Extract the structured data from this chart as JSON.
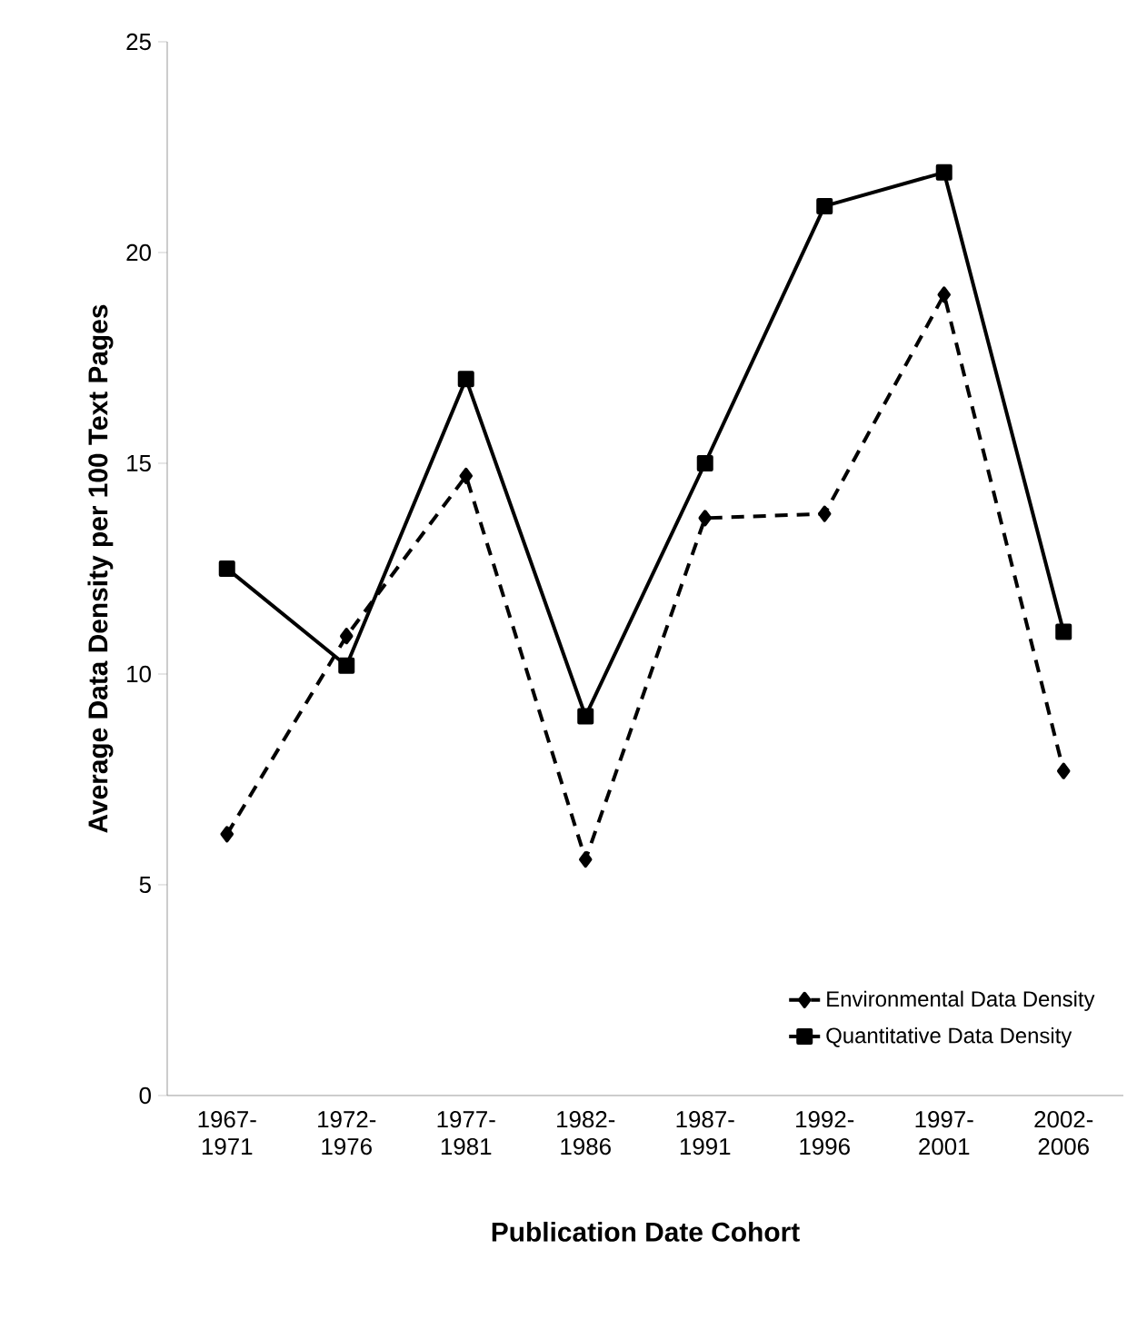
{
  "chart_data": {
    "type": "line",
    "xlabel": "Publication Date Cohort",
    "ylabel": "Average Data Density per 100 Text Pages",
    "categories": [
      "1967-1971",
      "1972-1976",
      "1977-1981",
      "1982-1986",
      "1987-1991",
      "1992-1996",
      "1997-2001",
      "2002-2006"
    ],
    "series": [
      {
        "name": "Environmental Data Density",
        "color": "#000000",
        "marker": "diamond",
        "line_style": "dashed",
        "values": [
          6.2,
          10.9,
          14.7,
          5.6,
          13.7,
          13.8,
          19.0,
          7.7
        ]
      },
      {
        "name": "Quantitative Data Density",
        "color": "#000000",
        "marker": "square",
        "line_style": "solid",
        "values": [
          12.5,
          10.2,
          17.0,
          9.0,
          15.0,
          21.1,
          21.9,
          11.0
        ]
      }
    ],
    "ylim": [
      0,
      25
    ],
    "yticks": [
      0,
      5,
      10,
      15,
      20,
      25
    ],
    "grid": false,
    "legend": "bottom right"
  }
}
